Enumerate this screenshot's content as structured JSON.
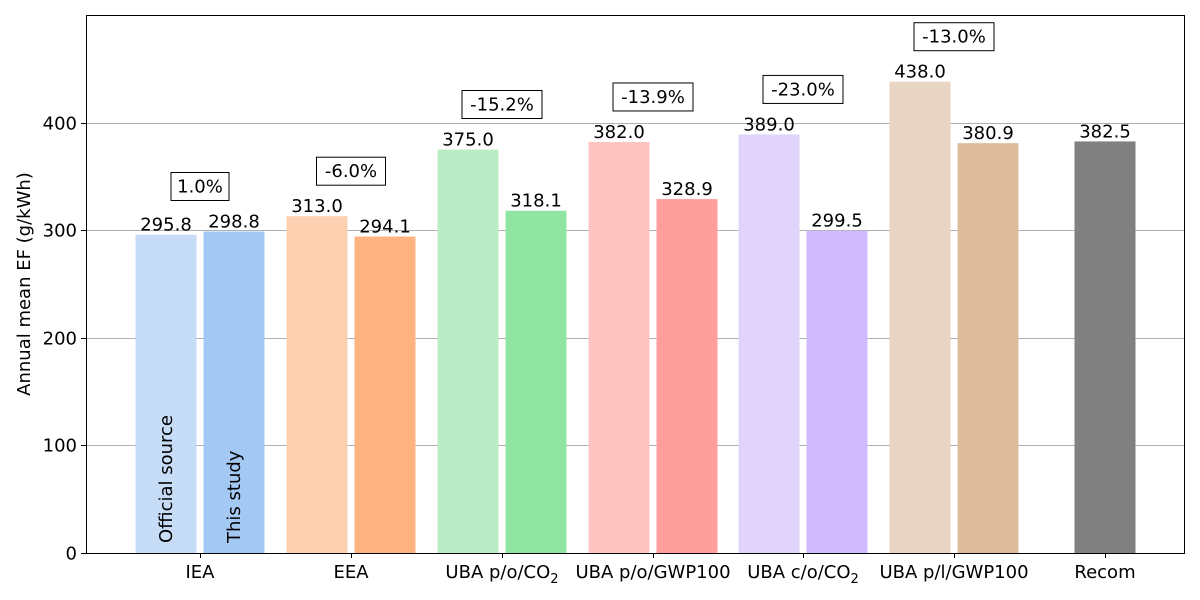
{
  "chart_data": {
    "type": "bar",
    "title": "",
    "xlabel": "",
    "ylabel": "Annual mean EF (g/kWh)",
    "ylim": [
      0,
      500
    ],
    "yticks": [
      0,
      100,
      200,
      300,
      400
    ],
    "grid": "horizontal",
    "categories": [
      {
        "label": "IEA",
        "sub": ""
      },
      {
        "label": "EEA",
        "sub": ""
      },
      {
        "label": "UBA p/o/CO",
        "sub": "2"
      },
      {
        "label": "UBA p/o/GWP100",
        "sub": ""
      },
      {
        "label": "UBA c/o/CO",
        "sub": "2"
      },
      {
        "label": "UBA p/l/GWP100",
        "sub": ""
      },
      {
        "label": "Recom",
        "sub": ""
      }
    ],
    "series": [
      {
        "name": "Official source",
        "values": [
          295.8,
          313.0,
          375.0,
          382.0,
          389.0,
          438.0,
          null
        ],
        "value_labels": [
          "295.8",
          "313.0",
          "375.0",
          "382.0",
          "389.0",
          "438.0",
          ""
        ]
      },
      {
        "name": "This study",
        "values": [
          298.8,
          294.1,
          318.1,
          328.9,
          299.5,
          380.9,
          382.5
        ],
        "value_labels": [
          "298.8",
          "294.1",
          "318.1",
          "328.9",
          "299.5",
          "380.9",
          "382.5"
        ]
      }
    ],
    "colors": {
      "official": [
        "#c6dcf7",
        "#fdd0b1",
        "#bbecc8",
        "#fec4c2",
        "#e0d4fd",
        "#e9d5c3",
        null
      ],
      "study": [
        "#a3c8f3",
        "#feb381",
        "#8fe5a1",
        "#fe9f9b",
        "#d0bbfe",
        "#debb9b",
        "#808080"
      ]
    },
    "annotations": [
      "1.0%",
      "-6.0%",
      "-15.2%",
      "-13.9%",
      "-23.0%",
      "-13.0%",
      ""
    ],
    "in_bar_labels": [
      "Official source",
      "This study"
    ]
  }
}
